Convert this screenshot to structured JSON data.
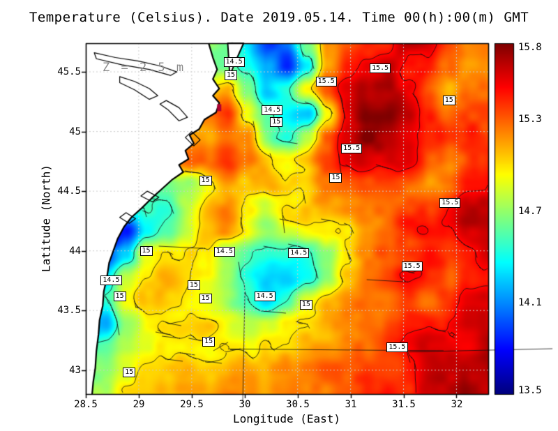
{
  "chart_data": {
    "type": "heatmap",
    "title": "Temperature (Celsius). Date 2019.05.14. Time 00(h):00(m) GMT",
    "units": "Celsius",
    "depth_label": "Z = 2.5 m",
    "xlabel": "Longitude (East)",
    "ylabel": "Latitude (North)",
    "xlim": [
      28.5,
      32.3
    ],
    "ylim": [
      42.8,
      45.74
    ],
    "grid": true,
    "x_ticks": [
      28.5,
      29,
      29.5,
      30,
      30.5,
      31,
      31.5,
      32
    ],
    "x_tick_labels": [
      "28.5",
      "29",
      "29.5",
      "30",
      "30.5",
      "31",
      "31.5",
      "32"
    ],
    "y_ticks": [
      43,
      43.5,
      44,
      44.5,
      45,
      45.5
    ],
    "y_tick_labels": [
      "43",
      "43.5",
      "44",
      "44.5",
      "45",
      "45.5"
    ],
    "colorbar": {
      "vmin": 13.5,
      "vmax": 15.8,
      "tick_values": [
        15.8,
        15.3,
        14.7,
        14.1,
        13.5
      ],
      "tick_labels": [
        "15.8",
        "15.3",
        "14.7",
        "14.1",
        "13.5"
      ]
    },
    "x": [
      28.5,
      28.69,
      28.88,
      29.07,
      29.26,
      29.45,
      29.64,
      29.83,
      30.02,
      30.21,
      30.4,
      30.59,
      30.78,
      30.97,
      31.16,
      31.35,
      31.54,
      31.73,
      31.92,
      32.11,
      32.3
    ],
    "y": [
      45.74,
      45.54,
      45.35,
      45.15,
      44.95,
      44.76,
      44.56,
      44.36,
      44.17,
      43.97,
      43.77,
      43.58,
      43.38,
      43.18,
      42.99,
      42.8
    ],
    "values": [
      [
        14.6,
        14.6,
        14.6,
        14.6,
        14.6,
        14.6,
        14.6,
        14.6,
        14.3,
        13.9,
        14.1,
        14.7,
        15.2,
        15.4,
        15.5,
        15.5,
        15.6,
        15.6,
        15.4,
        15.2,
        15.2
      ],
      [
        14.6,
        14.6,
        14.6,
        14.6,
        14.6,
        14.6,
        14.6,
        14.6,
        14.4,
        14.1,
        13.8,
        14.3,
        15.1,
        15.4,
        15.5,
        15.6,
        15.4,
        15.5,
        15.3,
        15.1,
        15.2
      ],
      [
        15.0,
        15.0,
        15.0,
        15.0,
        15.0,
        15.0,
        15.0,
        15.1,
        14.6,
        14.2,
        14.4,
        14.9,
        15.3,
        15.5,
        15.7,
        15.7,
        15.5,
        15.3,
        15.1,
        15.2,
        15.3
      ],
      [
        15.2,
        15.2,
        15.2,
        15.2,
        15.2,
        15.2,
        15.3,
        15.4,
        14.9,
        14.5,
        14.3,
        14.2,
        14.9,
        15.5,
        15.8,
        15.8,
        15.6,
        15.4,
        15.2,
        15.3,
        15.4
      ],
      [
        15.2,
        15.2,
        15.2,
        15.2,
        15.2,
        15.2,
        15.2,
        15.3,
        15.2,
        14.6,
        14.5,
        14.8,
        15.3,
        15.6,
        15.8,
        15.7,
        15.6,
        15.4,
        15.3,
        15.4,
        15.4
      ],
      [
        15.3,
        15.3,
        15.3,
        15.3,
        15.3,
        15.3,
        15.3,
        15.4,
        15.2,
        15.0,
        15.0,
        15.1,
        15.3,
        15.5,
        15.6,
        15.6,
        15.5,
        15.3,
        15.2,
        15.4,
        15.4
      ],
      [
        14.6,
        14.6,
        14.6,
        14.6,
        14.6,
        14.7,
        15.0,
        15.2,
        15.1,
        15.2,
        15.1,
        15.0,
        15.2,
        15.3,
        15.4,
        15.4,
        15.3,
        15.2,
        15.3,
        15.5,
        15.5
      ],
      [
        14.5,
        14.5,
        14.5,
        14.5,
        14.5,
        14.8,
        15.1,
        15.2,
        15.0,
        14.9,
        15.0,
        15.0,
        15.1,
        15.2,
        15.3,
        15.3,
        15.3,
        15.4,
        15.5,
        15.6,
        15.6
      ],
      [
        13.6,
        13.6,
        13.8,
        14.4,
        14.6,
        14.8,
        15.0,
        15.1,
        14.9,
        14.7,
        14.8,
        14.9,
        14.9,
        15.0,
        15.2,
        15.3,
        15.4,
        15.5,
        15.5,
        15.6,
        15.6
      ],
      [
        13.9,
        13.9,
        14.2,
        14.9,
        15.0,
        15.0,
        14.9,
        14.6,
        14.5,
        14.4,
        14.5,
        14.4,
        14.6,
        15.0,
        15.2,
        15.3,
        15.4,
        15.5,
        15.4,
        15.5,
        15.6
      ],
      [
        14.3,
        14.3,
        14.8,
        15.0,
        15.1,
        15.0,
        14.9,
        14.7,
        14.4,
        14.2,
        14.3,
        14.4,
        14.7,
        15.1,
        15.3,
        15.4,
        15.5,
        15.4,
        15.3,
        15.5,
        15.5
      ],
      [
        14.5,
        14.5,
        14.9,
        15.1,
        15.1,
        15.0,
        14.9,
        14.7,
        14.5,
        14.3,
        14.5,
        14.9,
        15.1,
        15.2,
        15.3,
        15.3,
        15.4,
        15.3,
        15.4,
        15.5,
        15.6
      ],
      [
        14.2,
        14.2,
        14.7,
        14.9,
        15.0,
        15.0,
        15.0,
        14.9,
        14.8,
        14.9,
        15.0,
        15.1,
        15.2,
        15.2,
        15.3,
        15.3,
        15.4,
        15.5,
        15.5,
        15.6,
        15.6
      ],
      [
        14.6,
        14.6,
        14.8,
        14.9,
        14.9,
        14.9,
        14.9,
        15.0,
        15.0,
        15.1,
        15.1,
        15.2,
        15.2,
        15.3,
        15.3,
        15.4,
        15.5,
        15.6,
        15.6,
        15.6,
        15.7
      ],
      [
        14.7,
        14.7,
        14.9,
        15.0,
        15.0,
        15.1,
        15.1,
        15.1,
        15.2,
        15.2,
        15.2,
        15.2,
        15.3,
        15.3,
        15.4,
        15.4,
        15.5,
        15.6,
        15.6,
        15.7,
        15.7
      ],
      [
        14.8,
        14.8,
        15.0,
        15.0,
        15.1,
        15.1,
        15.1,
        15.2,
        15.2,
        15.2,
        15.3,
        15.3,
        15.3,
        15.3,
        15.4,
        15.5,
        15.5,
        15.6,
        15.6,
        15.7,
        15.7
      ]
    ],
    "contour_levels": [
      14.5,
      15,
      15.5
    ],
    "contour_labels": [
      {
        "lon": 29.9,
        "lat": 45.58,
        "text": "14.5"
      },
      {
        "lon": 29.87,
        "lat": 45.47,
        "text": "15"
      },
      {
        "lon": 31.28,
        "lat": 45.53,
        "text": "15.5"
      },
      {
        "lon": 30.77,
        "lat": 45.42,
        "text": "15.5"
      },
      {
        "lon": 31.93,
        "lat": 45.26,
        "text": "15"
      },
      {
        "lon": 30.26,
        "lat": 45.18,
        "text": "14.5"
      },
      {
        "lon": 30.3,
        "lat": 45.08,
        "text": "15"
      },
      {
        "lon": 31.01,
        "lat": 44.86,
        "text": "15.5"
      },
      {
        "lon": 29.63,
        "lat": 44.59,
        "text": "15"
      },
      {
        "lon": 30.86,
        "lat": 44.61,
        "text": "15"
      },
      {
        "lon": 31.94,
        "lat": 44.4,
        "text": "15.5"
      },
      {
        "lon": 29.07,
        "lat": 44.0,
        "text": "15"
      },
      {
        "lon": 29.81,
        "lat": 43.99,
        "text": "14.5"
      },
      {
        "lon": 30.51,
        "lat": 43.98,
        "text": "14.5"
      },
      {
        "lon": 31.58,
        "lat": 43.87,
        "text": "15.5"
      },
      {
        "lon": 28.74,
        "lat": 43.75,
        "text": "14.5"
      },
      {
        "lon": 29.52,
        "lat": 43.71,
        "text": "15"
      },
      {
        "lon": 28.82,
        "lat": 43.62,
        "text": "15"
      },
      {
        "lon": 30.19,
        "lat": 43.62,
        "text": "14.5"
      },
      {
        "lon": 29.63,
        "lat": 43.6,
        "text": "15"
      },
      {
        "lon": 30.58,
        "lat": 43.55,
        "text": "15"
      },
      {
        "lon": 29.66,
        "lat": 43.24,
        "text": "15"
      },
      {
        "lon": 31.44,
        "lat": 43.19,
        "text": "15.5"
      },
      {
        "lon": 28.91,
        "lat": 42.98,
        "text": "15"
      }
    ],
    "coastline": [
      [
        29.66,
        45.74
      ],
      [
        29.7,
        45.62
      ],
      [
        29.74,
        45.52
      ],
      [
        29.7,
        45.44
      ],
      [
        29.76,
        45.36
      ],
      [
        29.7,
        45.3
      ],
      [
        29.76,
        45.24
      ],
      [
        29.73,
        45.16
      ],
      [
        29.62,
        45.1
      ],
      [
        29.57,
        45.02
      ],
      [
        29.48,
        44.97
      ],
      [
        29.52,
        44.9
      ],
      [
        29.44,
        44.84
      ],
      [
        29.47,
        44.77
      ],
      [
        29.38,
        44.72
      ],
      [
        29.42,
        44.66
      ],
      [
        29.32,
        44.6
      ],
      [
        29.22,
        44.52
      ],
      [
        29.12,
        44.44
      ],
      [
        29.03,
        44.36
      ],
      [
        28.93,
        44.28
      ],
      [
        28.86,
        44.2
      ],
      [
        28.8,
        44.1
      ],
      [
        28.76,
        44.0
      ],
      [
        28.72,
        43.9
      ],
      [
        28.7,
        43.78
      ],
      [
        28.67,
        43.66
      ],
      [
        28.66,
        43.54
      ],
      [
        28.63,
        43.42
      ],
      [
        28.62,
        43.3
      ],
      [
        28.6,
        43.16
      ],
      [
        28.59,
        43.02
      ],
      [
        28.57,
        42.9
      ],
      [
        28.56,
        42.8
      ]
    ],
    "spit": [
      [
        29.84,
        45.74
      ],
      [
        29.99,
        45.74
      ],
      [
        29.92,
        45.6
      ],
      [
        29.86,
        45.47
      ]
    ],
    "lagoons": [
      [
        [
          28.58,
          45.66
        ],
        [
          28.78,
          45.62
        ],
        [
          29.0,
          45.59
        ],
        [
          29.2,
          45.55
        ],
        [
          29.36,
          45.5
        ],
        [
          29.3,
          45.47
        ],
        [
          29.1,
          45.52
        ],
        [
          28.84,
          45.56
        ],
        [
          28.6,
          45.61
        ]
      ],
      [
        [
          28.82,
          45.46
        ],
        [
          28.96,
          45.42
        ],
        [
          29.1,
          45.36
        ],
        [
          29.18,
          45.3
        ],
        [
          29.1,
          45.27
        ],
        [
          28.96,
          45.35
        ],
        [
          28.82,
          45.41
        ]
      ],
      [
        [
          29.26,
          45.26
        ],
        [
          29.38,
          45.2
        ],
        [
          29.46,
          45.12
        ],
        [
          29.38,
          45.09
        ],
        [
          29.28,
          45.18
        ],
        [
          29.2,
          45.23
        ]
      ],
      [
        [
          29.5,
          45.0
        ],
        [
          29.58,
          44.93
        ],
        [
          29.52,
          44.88
        ],
        [
          29.44,
          44.95
        ]
      ],
      [
        [
          29.08,
          44.5
        ],
        [
          29.19,
          44.45
        ],
        [
          29.13,
          44.41
        ],
        [
          29.02,
          44.46
        ]
      ],
      [
        [
          28.88,
          44.32
        ],
        [
          28.97,
          44.27
        ],
        [
          28.91,
          44.23
        ],
        [
          28.82,
          44.28
        ]
      ]
    ],
    "hot_spot": {
      "lon": 29.76,
      "lat": 45.2
    }
  }
}
